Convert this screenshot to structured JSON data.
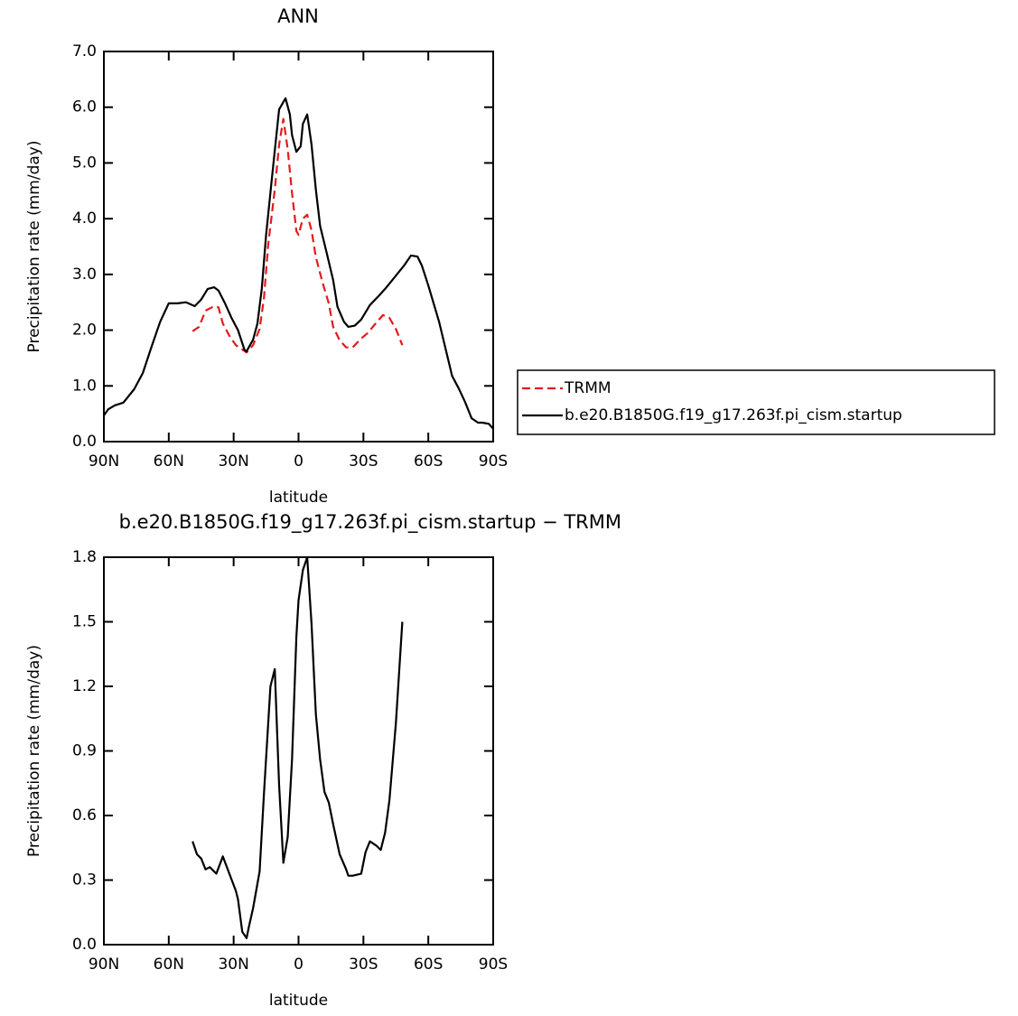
{
  "chart_data": [
    {
      "type": "line",
      "title": "ANN",
      "xlabel": "latitude",
      "ylabel": "Precipitation rate (mm/day)",
      "xlim": [
        90,
        -90
      ],
      "ylim": [
        0,
        7
      ],
      "xticks": [
        {
          "value": 90,
          "label": "90N"
        },
        {
          "value": 60,
          "label": "60N"
        },
        {
          "value": 30,
          "label": "30N"
        },
        0,
        {
          "value": -30,
          "label": "30S"
        },
        {
          "value": -60,
          "label": "60S"
        },
        {
          "value": -90,
          "label": "90S"
        }
      ],
      "yticks": [
        {
          "value": 0,
          "label": "0.0"
        },
        {
          "value": 1,
          "label": "1.0"
        },
        {
          "value": 2,
          "label": "2.0"
        },
        {
          "value": 3,
          "label": "3.0"
        },
        {
          "value": 4,
          "label": "4.0"
        },
        {
          "value": 5,
          "label": "5.0"
        },
        {
          "value": 6,
          "label": "6.0"
        },
        {
          "value": 7,
          "label": "7.0"
        }
      ],
      "legend": "right",
      "series": [
        {
          "name": "TRMM",
          "color": "#e31a1c",
          "dashed": true,
          "x": [
            49,
            46,
            43,
            39,
            37,
            35,
            32,
            29,
            24,
            21,
            18,
            16,
            14,
            11,
            9,
            7,
            5,
            3,
            1,
            0,
            -2,
            -4,
            -6,
            -8,
            -11,
            -14,
            -16,
            -19,
            -22,
            -25,
            -29,
            -32,
            -35,
            -39,
            -42,
            -45,
            -48
          ],
          "values": [
            1.98,
            2.06,
            2.35,
            2.43,
            2.41,
            2.12,
            1.9,
            1.73,
            1.6,
            1.73,
            2.02,
            2.57,
            3.55,
            4.52,
            5.33,
            5.79,
            5.25,
            4.46,
            3.78,
            3.71,
            4.0,
            4.07,
            3.79,
            3.31,
            2.87,
            2.48,
            2.06,
            1.82,
            1.69,
            1.69,
            1.85,
            1.95,
            2.09,
            2.27,
            2.22,
            2.02,
            1.73
          ]
        },
        {
          "name": "b.e20.B1850G.f19_g17.263f.pi_cism.startup",
          "color": "#000000",
          "dashed": false,
          "x": [
            90,
            88,
            85,
            81,
            76,
            72,
            68,
            64,
            60,
            56,
            52,
            48,
            45,
            42,
            39,
            37,
            34,
            31,
            28,
            25,
            24,
            21,
            19,
            17,
            15,
            12,
            9,
            6,
            4,
            3,
            1,
            -1,
            -2,
            -4,
            -6,
            -8,
            -10,
            -13,
            -16,
            -18,
            -21,
            -23,
            -26,
            -29,
            -33,
            -37,
            -40,
            -44,
            -49,
            -52,
            -55,
            -57,
            -60,
            -65,
            -71,
            -74,
            -77,
            -80,
            -83,
            -85,
            -88,
            -90
          ],
          "values": [
            0.47,
            0.58,
            0.65,
            0.7,
            0.94,
            1.23,
            1.7,
            2.15,
            2.48,
            2.48,
            2.5,
            2.43,
            2.55,
            2.74,
            2.77,
            2.71,
            2.48,
            2.22,
            2.0,
            1.65,
            1.62,
            1.83,
            2.12,
            2.74,
            3.71,
            4.85,
            5.96,
            6.16,
            5.87,
            5.5,
            5.2,
            5.3,
            5.7,
            5.87,
            5.33,
            4.52,
            3.87,
            3.39,
            2.9,
            2.42,
            2.15,
            2.06,
            2.08,
            2.19,
            2.45,
            2.61,
            2.74,
            2.93,
            3.17,
            3.34,
            3.32,
            3.16,
            2.8,
            2.15,
            1.18,
            0.96,
            0.71,
            0.42,
            0.34,
            0.34,
            0.32,
            0.23
          ]
        }
      ]
    },
    {
      "type": "line",
      "title": "b.e20.B1850G.f19_g17.263f.pi_cism.startup − TRMM",
      "xlabel": "latitude",
      "ylabel": "Precipitation rate (mm/day)",
      "xlim": [
        90,
        -90
      ],
      "ylim": [
        0,
        1.8
      ],
      "xticks": [
        {
          "value": 90,
          "label": "90N"
        },
        {
          "value": 60,
          "label": "60N"
        },
        {
          "value": 30,
          "label": "30N"
        },
        0,
        {
          "value": -30,
          "label": "30S"
        },
        {
          "value": -60,
          "label": "60S"
        },
        {
          "value": -90,
          "label": "90S"
        }
      ],
      "yticks": [
        {
          "value": 0,
          "label": "0.0"
        },
        0.3,
        0.6,
        0.9,
        1.2,
        1.5,
        1.8
      ],
      "series": [
        {
          "color": "#000000",
          "dashed": false,
          "x": [
            49,
            47,
            45,
            43,
            41,
            38,
            35,
            32,
            29,
            28,
            26,
            24,
            23,
            21,
            18,
            16,
            13,
            11,
            9,
            7,
            5,
            3,
            1,
            0,
            -2,
            -4,
            -6,
            -8,
            -10,
            -12,
            -14,
            -16,
            -19,
            -22,
            -23,
            -25,
            -29,
            -31,
            -33,
            -36,
            -38,
            -40,
            -42,
            -45,
            -48
          ],
          "values": [
            0.48,
            0.42,
            0.4,
            0.35,
            0.36,
            0.33,
            0.41,
            0.33,
            0.25,
            0.21,
            0.06,
            0.03,
            0.08,
            0.17,
            0.34,
            0.7,
            1.2,
            1.28,
            0.74,
            0.38,
            0.5,
            0.86,
            1.43,
            1.6,
            1.74,
            1.8,
            1.49,
            1.07,
            0.86,
            0.71,
            0.66,
            0.56,
            0.42,
            0.35,
            0.32,
            0.32,
            0.33,
            0.43,
            0.48,
            0.46,
            0.44,
            0.52,
            0.67,
            1.03,
            1.5
          ]
        }
      ]
    }
  ]
}
